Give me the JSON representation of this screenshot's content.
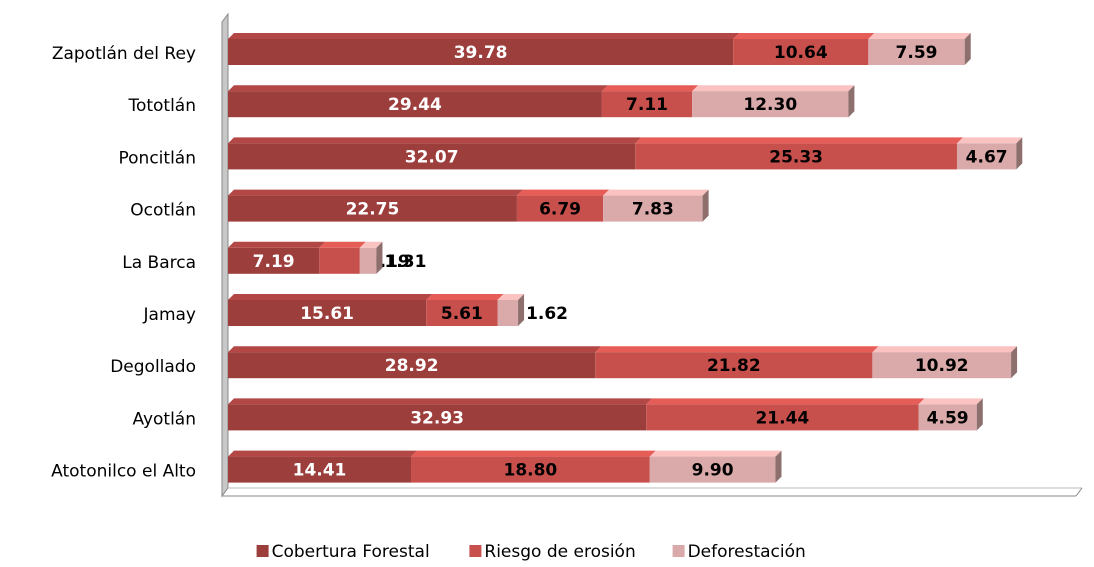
{
  "chart_data": {
    "type": "bar",
    "orientation": "horizontal",
    "stacked": true,
    "categories": [
      "Zapotlán del Rey",
      "Tototlán",
      "Poncitlán",
      "Ocotlán",
      "La Barca",
      "Jamay",
      "Degollado",
      "Ayotlán",
      "Atotonilco el Alto"
    ],
    "series": [
      {
        "name": "Cobertura Forestal",
        "color": "#9c3e3c",
        "values": [
          39.78,
          29.44,
          32.07,
          22.75,
          7.19,
          15.61,
          28.92,
          32.93,
          14.41
        ],
        "value_labels": [
          "39.78",
          "29.44",
          "32.07",
          "22.75",
          "7.19",
          "15.61",
          "28.92",
          "32.93",
          "14.41"
        ]
      },
      {
        "name": "Riesgo de erosión",
        "color": "#c8504c",
        "values": [
          10.64,
          7.11,
          25.33,
          6.79,
          3.19,
          5.61,
          21.82,
          21.44,
          18.8
        ],
        "value_labels": [
          "10.64",
          "7.11",
          "25.33",
          "6.79",
          "3.19",
          "5.61",
          "21.82",
          "21.44",
          "18.80"
        ]
      },
      {
        "name": "Deforestación",
        "color": "#d9aaa9",
        "values": [
          7.59,
          12.3,
          4.67,
          7.83,
          1.31,
          1.62,
          10.92,
          4.59,
          9.9
        ],
        "value_labels": [
          "7.59",
          "12.30",
          "4.67",
          "7.83",
          "1.31",
          "1.62",
          "10.92",
          "4.59",
          "9.90"
        ]
      }
    ]
  }
}
